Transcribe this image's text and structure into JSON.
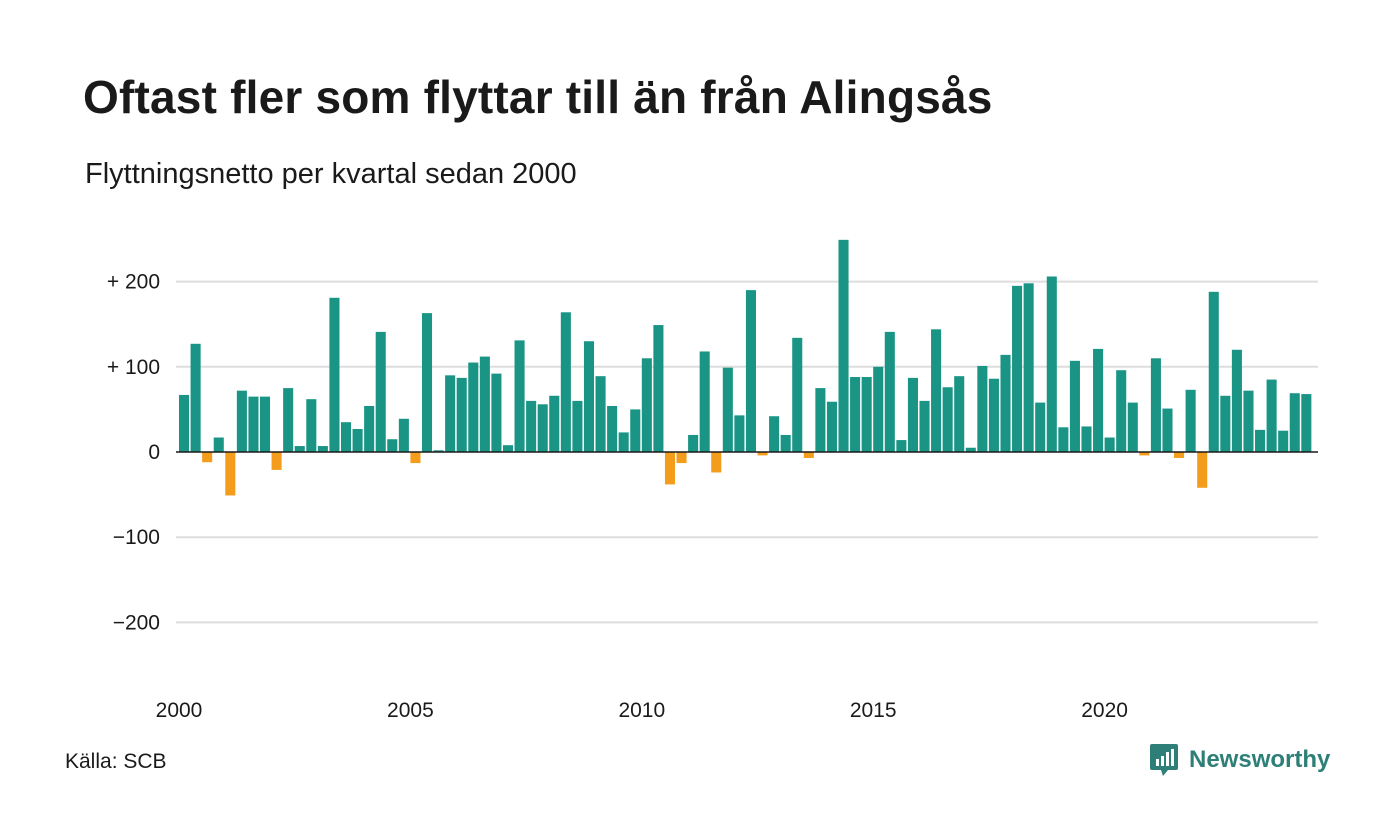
{
  "title": "Oftast fler som flyttar till än från Alingsås",
  "subtitle": "Flyttningsnetto per kvartal sedan 2000",
  "source": "Källa: SCB",
  "brand": "Newsworthy",
  "colors": {
    "positive": "#1a9585",
    "negative": "#f49c1c",
    "grid": "#dddddd",
    "zero_line": "#1a1a1a",
    "brand": "#2e7f78"
  },
  "chart_data": {
    "type": "bar",
    "title": "Oftast fler som flyttar till än från Alingsås",
    "subtitle": "Flyttningsnetto per kvartal sedan 2000",
    "xlabel": "",
    "ylabel": "",
    "ylim": [
      -270,
      250
    ],
    "grid": true,
    "x_start": 2000,
    "periods_per_year": 4,
    "yticks": [
      200,
      100,
      0,
      -100,
      -200
    ],
    "ytick_labels": [
      "+ 200",
      "+ 100",
      "0",
      "−100",
      "−200"
    ],
    "xticks": [
      2000,
      2005,
      2010,
      2015,
      2020
    ],
    "xtick_labels": [
      "2000",
      "2005",
      "2010",
      "2015",
      "2020"
    ],
    "values": [
      67,
      127,
      -12,
      17,
      -51,
      72,
      65,
      65,
      -21,
      75,
      7,
      62,
      7,
      181,
      35,
      27,
      54,
      141,
      15,
      39,
      -13,
      163,
      2,
      90,
      87,
      105,
      112,
      92,
      8,
      131,
      60,
      56,
      66,
      164,
      60,
      130,
      89,
      54,
      23,
      50,
      110,
      149,
      -38,
      -13,
      20,
      118,
      -24,
      99,
      43,
      190,
      -4,
      42,
      20,
      134,
      -7,
      75,
      59,
      249,
      88,
      88,
      100,
      141,
      14,
      87,
      60,
      144,
      76,
      89,
      5,
      101,
      86,
      114,
      195,
      198,
      58,
      206,
      29,
      107,
      30,
      121,
      17,
      96,
      58,
      -4,
      110,
      51,
      -7,
      73,
      -42,
      188,
      66,
      120,
      72,
      26,
      85,
      25,
      69,
      68
    ]
  }
}
